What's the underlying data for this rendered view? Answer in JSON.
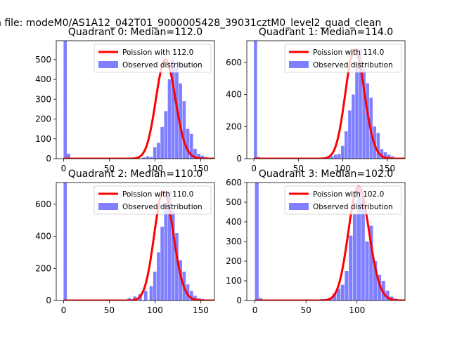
{
  "suptitle": "n file: modeM0/AS1A12_042T01_9000005428_39031cztM0_level2_quad_clean",
  "chart_data": [
    {
      "type": "bar",
      "title": "Quadrant 0: Median=112.0",
      "xlim": [
        -8,
        165
      ],
      "ylim": [
        0,
        595
      ],
      "xticks": [
        0,
        50,
        100,
        150
      ],
      "yticks": [
        0,
        100,
        200,
        300,
        400,
        500
      ],
      "legend": {
        "position": "top-right",
        "entries": [
          "Poission with 112.0",
          "Observed distribution"
        ]
      },
      "poisson_mean": 112,
      "bins": [
        {
          "x": 0,
          "y": 595
        },
        {
          "x": 3.6,
          "y": 25
        },
        {
          "x": 7.2,
          "y": 3
        },
        {
          "x": 86,
          "y": 6
        },
        {
          "x": 90,
          "y": 12
        },
        {
          "x": 94,
          "y": 8
        },
        {
          "x": 98,
          "y": 58
        },
        {
          "x": 102,
          "y": 80
        },
        {
          "x": 106,
          "y": 160
        },
        {
          "x": 110,
          "y": 240
        },
        {
          "x": 114,
          "y": 400
        },
        {
          "x": 118,
          "y": 500
        },
        {
          "x": 122,
          "y": 460
        },
        {
          "x": 126,
          "y": 380
        },
        {
          "x": 130,
          "y": 290
        },
        {
          "x": 134,
          "y": 150
        },
        {
          "x": 138,
          "y": 125
        },
        {
          "x": 142,
          "y": 50
        },
        {
          "x": 146,
          "y": 25
        },
        {
          "x": 150,
          "y": 15
        },
        {
          "x": 154,
          "y": 8
        }
      ]
    },
    {
      "type": "bar",
      "title": "Quadrant 1: Median=114.0",
      "xlim": [
        -8,
        170
      ],
      "ylim": [
        0,
        735
      ],
      "xticks": [
        0,
        50,
        100,
        150
      ],
      "yticks": [
        0,
        200,
        400,
        600
      ],
      "legend": {
        "position": "top-right",
        "entries": [
          "Poission with 114.0",
          "Observed distribution"
        ]
      },
      "poisson_mean": 114,
      "bins": [
        {
          "x": 0,
          "y": 735
        },
        {
          "x": 3.6,
          "y": 10
        },
        {
          "x": 82,
          "y": 15
        },
        {
          "x": 86,
          "y": 15
        },
        {
          "x": 90,
          "y": 25
        },
        {
          "x": 94,
          "y": 30
        },
        {
          "x": 98,
          "y": 80
        },
        {
          "x": 102,
          "y": 170
        },
        {
          "x": 106,
          "y": 300
        },
        {
          "x": 110,
          "y": 400
        },
        {
          "x": 114,
          "y": 600
        },
        {
          "x": 118,
          "y": 680
        },
        {
          "x": 122,
          "y": 560
        },
        {
          "x": 126,
          "y": 470
        },
        {
          "x": 130,
          "y": 380
        },
        {
          "x": 134,
          "y": 200
        },
        {
          "x": 138,
          "y": 160
        },
        {
          "x": 142,
          "y": 60
        },
        {
          "x": 146,
          "y": 40
        },
        {
          "x": 150,
          "y": 25
        },
        {
          "x": 154,
          "y": 15
        }
      ]
    },
    {
      "type": "bar",
      "title": "Quadrant 2: Median=110.0",
      "xlim": [
        -8,
        165
      ],
      "ylim": [
        0,
        735
      ],
      "xticks": [
        0,
        50,
        100,
        150
      ],
      "yticks": [
        0,
        200,
        400,
        600
      ],
      "legend": {
        "position": "top-right",
        "entries": [
          "Poission with 110.0",
          "Observed distribution"
        ]
      },
      "poisson_mean": 110,
      "bins": [
        {
          "x": 0,
          "y": 735
        },
        {
          "x": 70,
          "y": 15
        },
        {
          "x": 76,
          "y": 25
        },
        {
          "x": 82,
          "y": 40
        },
        {
          "x": 88,
          "y": 60
        },
        {
          "x": 94,
          "y": 90
        },
        {
          "x": 98,
          "y": 180
        },
        {
          "x": 102,
          "y": 300
        },
        {
          "x": 106,
          "y": 460
        },
        {
          "x": 110,
          "y": 600
        },
        {
          "x": 114,
          "y": 680
        },
        {
          "x": 118,
          "y": 560
        },
        {
          "x": 122,
          "y": 420
        },
        {
          "x": 126,
          "y": 250
        },
        {
          "x": 130,
          "y": 180
        },
        {
          "x": 134,
          "y": 100
        },
        {
          "x": 138,
          "y": 60
        },
        {
          "x": 142,
          "y": 30
        },
        {
          "x": 146,
          "y": 15
        },
        {
          "x": 150,
          "y": 10
        },
        {
          "x": 154,
          "y": 5
        }
      ]
    },
    {
      "type": "bar",
      "title": "Quadrant 3: Median=102.0",
      "xlim": [
        -8,
        147
      ],
      "ylim": [
        0,
        600
      ],
      "xticks": [
        0,
        50,
        100
      ],
      "yticks": [
        0,
        100,
        200,
        300,
        400,
        500,
        600
      ],
      "legend": {
        "position": "top-right",
        "entries": [
          "Poission with 102.0",
          "Observed distribution"
        ]
      },
      "poisson_mean": 102,
      "bins": [
        {
          "x": 0,
          "y": 600
        },
        {
          "x": 3.6,
          "y": 12
        },
        {
          "x": 64,
          "y": 8
        },
        {
          "x": 68,
          "y": 8
        },
        {
          "x": 72,
          "y": 15
        },
        {
          "x": 76,
          "y": 35
        },
        {
          "x": 80,
          "y": 60
        },
        {
          "x": 84,
          "y": 80
        },
        {
          "x": 88,
          "y": 150
        },
        {
          "x": 92,
          "y": 330
        },
        {
          "x": 96,
          "y": 440
        },
        {
          "x": 100,
          "y": 580
        },
        {
          "x": 104,
          "y": 520
        },
        {
          "x": 108,
          "y": 300
        },
        {
          "x": 112,
          "y": 380
        },
        {
          "x": 116,
          "y": 200
        },
        {
          "x": 120,
          "y": 130
        },
        {
          "x": 124,
          "y": 100
        },
        {
          "x": 128,
          "y": 50
        },
        {
          "x": 132,
          "y": 20
        },
        {
          "x": 136,
          "y": 10
        }
      ]
    }
  ]
}
